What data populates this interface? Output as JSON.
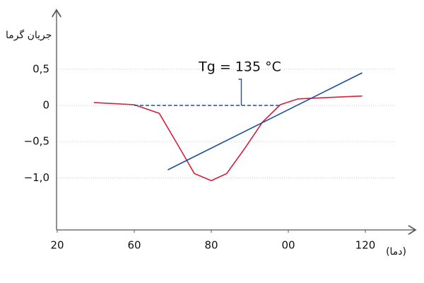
{
  "chart_data": {
    "type": "line",
    "y_label": "جریان گرما",
    "x_label": "(دما)",
    "annotation": {
      "text": "Tg = 135 °C",
      "x": 87.8
    },
    "series": [
      {
        "color": "#d6203c",
        "x": [
          39,
          60,
          66.5,
          71.9,
          75.6,
          80,
          84,
          88.6,
          93.3,
          97.9,
          102.5,
          110.9,
          119.2
        ],
        "values": [
          0.04,
          0.01,
          -0.11,
          -0.6,
          -0.94,
          -1.04,
          -0.94,
          -0.6,
          -0.23,
          0.01,
          0.09,
          0.11,
          0.13
        ]
      },
      {
        "color": "#1f4fa0",
        "x": [
          68.7,
          119.2
        ],
        "values": [
          -0.89,
          0.45
        ]
      },
      {
        "color": "#1f4fa0",
        "dash": true,
        "x": [
          60,
          98
        ],
        "values": [
          0,
          0
        ]
      }
    ],
    "xticks": [
      20,
      60,
      80,
      {
        "value": 100,
        "label": "00"
      },
      120
    ],
    "ylim": [
      -1.72,
      1.28
    ],
    "yticks": [
      {
        "value": 0.5,
        "label": "0,5"
      },
      0,
      {
        "value": -0.5,
        "label": "−0,5"
      },
      {
        "value": -1,
        "label": "−1,0"
      }
    ],
    "grid": true
  }
}
